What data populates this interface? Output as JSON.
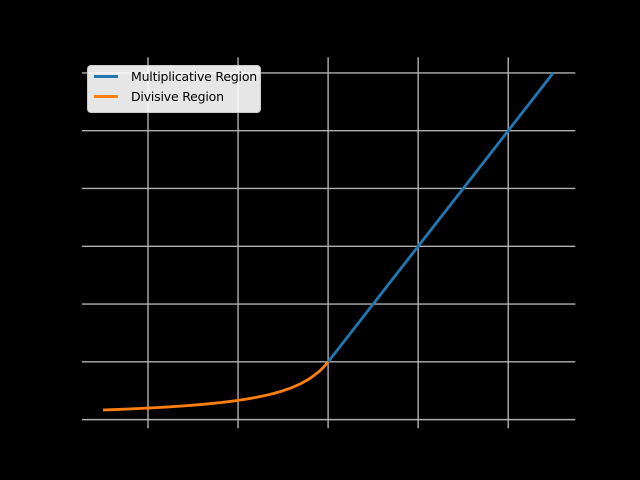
{
  "figure": {
    "background": "#000000",
    "plot_area_bg": "transparent"
  },
  "chart_data": {
    "type": "line",
    "title": "",
    "grid": true,
    "grid_color": "#b0b0b0",
    "tick_labels_visible": false,
    "axis_labels_visible": false,
    "xlim": [
      0.267,
      5.745
    ],
    "ylim": [
      -0.15,
      6.27
    ],
    "x_gridlines": [
      1,
      2,
      3,
      4,
      5
    ],
    "y_gridlines": [
      0,
      1,
      2,
      3,
      4,
      5,
      6
    ],
    "legend": {
      "position": "upper left",
      "bg_color": "#ffffff",
      "border_color": "#cccccc",
      "text_color": "#000000"
    },
    "series": [
      {
        "name": "Multiplicative Region",
        "color": "#1f77b4",
        "x": [
          3.0,
          3.5,
          4.0,
          4.5,
          5.0,
          5.5
        ],
        "y": [
          1.0,
          2.0,
          3.0,
          4.0,
          5.0,
          6.0
        ]
      },
      {
        "name": "Divisive Region",
        "color": "#ff7f0e",
        "x": [
          0.5,
          0.6,
          0.7,
          0.8,
          0.9,
          1.0,
          1.1,
          1.2,
          1.3,
          1.4,
          1.5,
          1.6,
          1.7,
          1.8,
          1.9,
          2.0,
          2.1,
          2.2,
          2.3,
          2.4,
          2.5,
          2.6,
          2.7,
          2.8,
          2.9,
          2.95,
          3.0
        ],
        "y": [
          0.1667,
          0.1724,
          0.1786,
          0.1852,
          0.1923,
          0.2,
          0.2083,
          0.2174,
          0.2273,
          0.2381,
          0.25,
          0.2632,
          0.2778,
          0.2941,
          0.3125,
          0.3333,
          0.3571,
          0.3846,
          0.4167,
          0.4545,
          0.5,
          0.5556,
          0.625,
          0.7143,
          0.8333,
          0.9091,
          1.0
        ]
      }
    ]
  }
}
